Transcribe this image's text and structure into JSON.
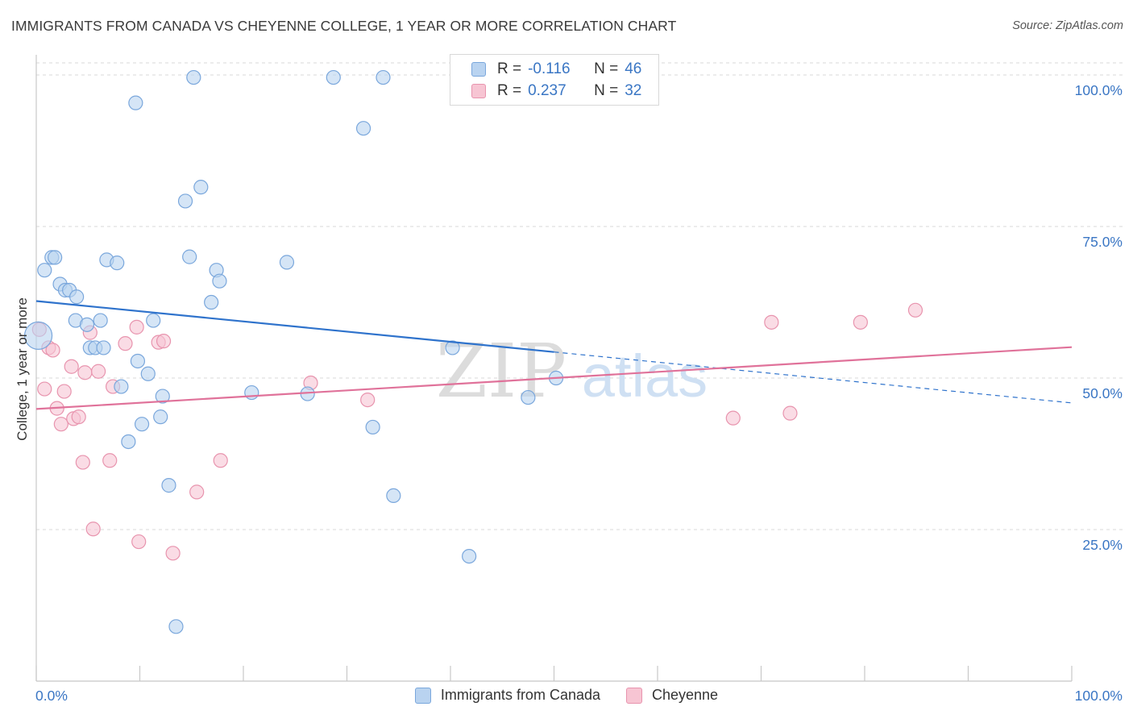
{
  "header": {
    "title": "IMMIGRANTS FROM CANADA VS CHEYENNE COLLEGE, 1 YEAR OR MORE CORRELATION CHART",
    "source": "Source: ZipAtlas.com"
  },
  "watermark": {
    "text_zip": "ZIP",
    "text_atlas": "atlas"
  },
  "colors": {
    "blue_fill": "#b9d3f0",
    "blue_stroke": "#7aa7dc",
    "blue_line": "#2f73cc",
    "pink_fill": "#f7c5d3",
    "pink_stroke": "#e894ae",
    "pink_line": "#e0729a",
    "axis_label": "#3a76c4",
    "grid": "#d9d9d9"
  },
  "legend_top": {
    "rows": [
      {
        "r_label": "R =",
        "r_value": "-0.116",
        "n_label": "N =",
        "n_value": "46"
      },
      {
        "r_label": "R =",
        "r_value": "0.237",
        "n_label": "N =",
        "n_value": "32"
      }
    ]
  },
  "legend_bottom": {
    "items": [
      {
        "label": "Immigrants from Canada"
      },
      {
        "label": "Cheyenne"
      }
    ]
  },
  "chart_data": {
    "type": "scatter",
    "title": "IMMIGRANTS FROM CANADA VS CHEYENNE COLLEGE, 1 YEAR OR MORE CORRELATION CHART",
    "xlabel": "",
    "ylabel": "College, 1 year or more",
    "xlim": [
      0,
      100
    ],
    "ylim": [
      0,
      102
    ],
    "x_tick_labels": [
      "0.0%",
      "100.0%"
    ],
    "y_ticks": [
      25,
      50,
      75,
      100
    ],
    "y_tick_labels": [
      "25.0%",
      "50.0%",
      "75.0%",
      "100.0%"
    ],
    "grid": true,
    "legend_position": "top-center",
    "series": [
      {
        "name": "Immigrants from Canada",
        "r": -0.116,
        "n": 46,
        "trend": {
          "x0": 0,
          "y0": 62.7,
          "x1": 50,
          "y1": 54.3,
          "dashed_to_x": 100,
          "dashed_to_y": 45.9
        },
        "points": [
          [
            0.2,
            57.0
          ],
          [
            0.8,
            67.8
          ],
          [
            1.5,
            69.9
          ],
          [
            1.8,
            69.9
          ],
          [
            2.3,
            65.5
          ],
          [
            2.8,
            64.5
          ],
          [
            3.2,
            64.5
          ],
          [
            3.9,
            63.4
          ],
          [
            3.8,
            59.5
          ],
          [
            4.9,
            58.8
          ],
          [
            5.2,
            55.0
          ],
          [
            5.7,
            55.0
          ],
          [
            6.2,
            59.5
          ],
          [
            6.5,
            55.0
          ],
          [
            6.8,
            69.5
          ],
          [
            7.8,
            69.0
          ],
          [
            8.2,
            48.6
          ],
          [
            8.9,
            39.5
          ],
          [
            9.6,
            95.4
          ],
          [
            9.8,
            52.8
          ],
          [
            10.2,
            42.4
          ],
          [
            10.8,
            50.7
          ],
          [
            11.3,
            59.5
          ],
          [
            12.0,
            43.6
          ],
          [
            12.2,
            47.0
          ],
          [
            12.8,
            32.3
          ],
          [
            13.5,
            9.0
          ],
          [
            14.4,
            79.2
          ],
          [
            14.8,
            70.0
          ],
          [
            15.2,
            99.6
          ],
          [
            15.9,
            81.5
          ],
          [
            16.9,
            62.5
          ],
          [
            17.4,
            67.8
          ],
          [
            17.7,
            66.0
          ],
          [
            20.8,
            47.6
          ],
          [
            24.2,
            69.1
          ],
          [
            26.2,
            47.4
          ],
          [
            28.7,
            99.6
          ],
          [
            31.6,
            91.2
          ],
          [
            32.5,
            41.9
          ],
          [
            33.5,
            99.6
          ],
          [
            34.5,
            30.6
          ],
          [
            40.2,
            55.0
          ],
          [
            41.8,
            20.6
          ],
          [
            47.5,
            46.8
          ],
          [
            50.2,
            50.0
          ]
        ]
      },
      {
        "name": "Cheyenne",
        "r": 0.237,
        "n": 32,
        "trend": {
          "x0": 0,
          "y0": 44.9,
          "x1": 100,
          "y1": 55.1
        },
        "points": [
          [
            0.3,
            58.0
          ],
          [
            0.8,
            48.2
          ],
          [
            1.2,
            55.0
          ],
          [
            1.6,
            54.6
          ],
          [
            2.0,
            45.0
          ],
          [
            2.4,
            42.4
          ],
          [
            2.7,
            47.8
          ],
          [
            3.4,
            51.9
          ],
          [
            3.6,
            43.3
          ],
          [
            4.1,
            43.6
          ],
          [
            4.5,
            36.1
          ],
          [
            4.7,
            50.9
          ],
          [
            5.2,
            57.5
          ],
          [
            5.5,
            25.1
          ],
          [
            6.0,
            51.1
          ],
          [
            7.1,
            36.4
          ],
          [
            7.4,
            48.6
          ],
          [
            8.6,
            55.7
          ],
          [
            9.7,
            58.4
          ],
          [
            9.9,
            23.0
          ],
          [
            11.8,
            55.9
          ],
          [
            12.3,
            56.1
          ],
          [
            13.2,
            21.1
          ],
          [
            15.5,
            31.2
          ],
          [
            17.8,
            36.4
          ],
          [
            26.5,
            49.2
          ],
          [
            32.0,
            46.4
          ],
          [
            67.3,
            43.4
          ],
          [
            71.0,
            59.2
          ],
          [
            72.8,
            44.2
          ],
          [
            79.6,
            59.2
          ],
          [
            84.9,
            61.2
          ]
        ]
      }
    ]
  }
}
